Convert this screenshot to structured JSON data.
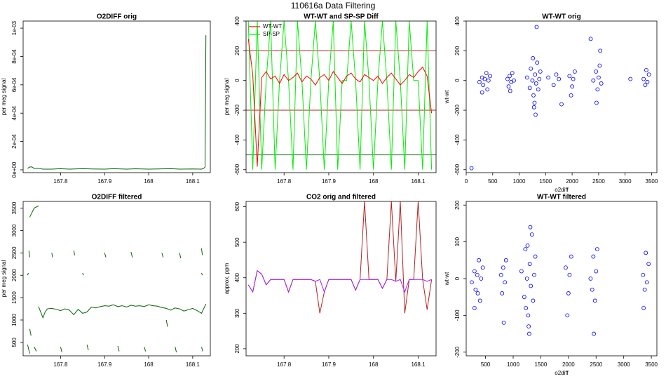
{
  "title": "110616a   Data Filtering",
  "chart_data": [
    {
      "type": "line",
      "title": "O2DIFF orig",
      "ylabel": "per meg signal",
      "xlim": [
        167.715,
        168.14
      ],
      "xticks": [
        167.8,
        167.9,
        168.0,
        168.1
      ],
      "ylim": [
        -2e-05,
        0.00105
      ],
      "yticks": [
        {
          "value": 0,
          "label": "0e+00"
        },
        {
          "value": 0.0002,
          "label": "2e-04"
        },
        {
          "value": 0.0004,
          "label": "4e-04"
        },
        {
          "value": 0.0006,
          "label": "6e-04"
        },
        {
          "value": 0.0008,
          "label": "8e-04"
        },
        {
          "value": 0.001,
          "label": "1e-03"
        }
      ],
      "x": [
        167.725,
        167.73,
        167.735,
        167.74,
        167.75,
        167.76,
        167.78,
        167.8,
        167.82,
        167.85,
        167.87,
        167.9,
        167.92,
        167.95,
        167.97,
        168.0,
        168.02,
        168.05,
        168.07,
        168.1,
        168.12,
        168.125,
        168.128,
        168.13
      ],
      "series": [
        {
          "color": "#006400",
          "values": [
            1e-05,
            2e-05,
            2e-05,
            1e-05,
            1e-05,
            5e-06,
            5e-06,
            8e-06,
            5e-06,
            8e-06,
            6e-06,
            5e-06,
            8e-06,
            5e-06,
            7e-06,
            5e-06,
            6e-06,
            8e-06,
            5e-06,
            6e-06,
            5e-06,
            1e-05,
            2e-05,
            0.00095
          ]
        }
      ]
    },
    {
      "type": "line",
      "title": "WT-WT and SP-SP Diff",
      "ylabel": "per meg signal",
      "xlim": [
        167.715,
        168.14
      ],
      "xticks": [
        167.8,
        167.9,
        168.0,
        168.1
      ],
      "ylim": [
        -620,
        400
      ],
      "yticks": [
        -600,
        -400,
        -200,
        0,
        200,
        400
      ],
      "legend": "top-left",
      "x": [
        167.72,
        167.73,
        167.74,
        167.75,
        167.76,
        167.77,
        167.78,
        167.79,
        167.8,
        167.81,
        167.82,
        167.83,
        167.84,
        167.85,
        167.86,
        167.87,
        167.88,
        167.89,
        167.9,
        167.91,
        167.92,
        167.93,
        167.94,
        167.95,
        167.96,
        167.97,
        167.98,
        167.99,
        168.0,
        168.01,
        168.02,
        168.03,
        168.04,
        168.05,
        168.06,
        168.07,
        168.08,
        168.09,
        168.1,
        168.11,
        168.12,
        168.13
      ],
      "series": [
        {
          "name": "WT-WT",
          "color": "#ff0000",
          "values": [
            280,
            40,
            -580,
            20,
            60,
            10,
            30,
            -20,
            40,
            0,
            20,
            50,
            -10,
            30,
            10,
            -30,
            20,
            40,
            0,
            60,
            20,
            -20,
            30,
            50,
            10,
            -10,
            40,
            20,
            0,
            30,
            -20,
            20,
            50,
            10,
            -30,
            0,
            40,
            20,
            60,
            90,
            30,
            -220
          ]
        },
        {
          "name": "SP-SP",
          "color": "#00ee00",
          "values": [
            400,
            -600,
            400,
            -600,
            0,
            400,
            -600,
            0,
            400,
            0,
            -600,
            400,
            0,
            -600,
            0,
            400,
            0,
            -600,
            0,
            400,
            -600,
            0,
            0,
            400,
            0,
            -600,
            400,
            0,
            -600,
            0,
            400,
            0,
            -600,
            400,
            0,
            -600,
            400,
            0,
            0,
            -600,
            400,
            -600
          ]
        }
      ],
      "hlines": [
        {
          "value": 200,
          "color": "#b22222"
        },
        {
          "value": -200,
          "color": "#b22222"
        },
        {
          "value": -500,
          "color": "#2e7d32"
        }
      ]
    },
    {
      "type": "scatter",
      "title": "WT-WT orig",
      "xlabel": "o2diff",
      "ylabel": "wt-wt",
      "color": "#0000ff",
      "xlim": [
        0,
        3600
      ],
      "xticks": [
        0,
        500,
        1000,
        1500,
        2000,
        2500,
        3000,
        3500
      ],
      "ylim": [
        -620,
        400
      ],
      "yticks": [
        -600,
        -400,
        -200,
        0,
        200,
        400
      ],
      "x": [
        250,
        300,
        320,
        350,
        380,
        400,
        420,
        450,
        300,
        780,
        800,
        820,
        850,
        870,
        900,
        830,
        1150,
        1200,
        1220,
        1250,
        1270,
        1300,
        1320,
        1340,
        1360,
        1380,
        1400,
        1290,
        1310,
        1260,
        1330,
        1280,
        1550,
        1650,
        1700,
        1800,
        1750,
        1950,
        2000,
        2020,
        2050,
        1980,
        2400,
        2450,
        2480,
        2500,
        2520,
        2550,
        2350,
        2530,
        2460,
        3350,
        3380,
        3400,
        3420,
        3450,
        3100,
        100
      ],
      "values": [
        -10,
        20,
        -30,
        10,
        50,
        -60,
        0,
        30,
        -80,
        10,
        -40,
        30,
        -10,
        50,
        0,
        -70,
        20,
        -50,
        80,
        0,
        -100,
        40,
        -20,
        120,
        -60,
        10,
        60,
        -150,
        -230,
        150,
        360,
        -180,
        20,
        -30,
        40,
        -160,
        10,
        30,
        -40,
        10,
        60,
        -100,
        0,
        60,
        -60,
        20,
        100,
        -20,
        280,
        200,
        -150,
        10,
        -30,
        70,
        -10,
        40,
        10,
        -590
      ]
    },
    {
      "type": "line",
      "title": "O2DIFF filtered",
      "ylabel": "per meg signal",
      "xlim": [
        167.715,
        168.14
      ],
      "xticks": [
        167.8,
        167.9,
        168.0,
        168.1
      ],
      "ylim": [
        200,
        3650
      ],
      "yticks": [
        500,
        1000,
        1500,
        2000,
        2500,
        3000,
        3500
      ],
      "series": [
        {
          "color": "#006400",
          "x": [
            167.75,
            167.76,
            167.765,
            167.77,
            167.78,
            167.79,
            167.8,
            167.81,
            167.82,
            167.83,
            167.84,
            167.85,
            167.86,
            167.87,
            167.88,
            167.89,
            167.9,
            167.91,
            167.92,
            167.93,
            167.94,
            167.95,
            167.96,
            167.97,
            167.98,
            167.99,
            168.0,
            168.01,
            168.02,
            168.03,
            168.04,
            168.05,
            168.06,
            168.07,
            168.08,
            168.09,
            168.1,
            168.11,
            168.12,
            168.13
          ],
          "values": [
            1300,
            1050,
            1180,
            1250,
            1260,
            1240,
            1210,
            1250,
            1220,
            1120,
            1240,
            1150,
            1180,
            1290,
            1270,
            1300,
            1320,
            1310,
            1340,
            1300,
            1320,
            1290,
            1330,
            1310,
            1320,
            1300,
            1340,
            1320,
            1310,
            1280,
            1260,
            1220,
            1270,
            1250,
            1200,
            1230,
            1260,
            1210,
            1150,
            1360
          ]
        },
        {
          "color": "#006400",
          "x": [
            167.73,
            167.74,
            167.75,
            167.75,
            167.728,
            167.73,
            167.73,
            167.78,
            167.782,
            167.782,
            167.83,
            167.832,
            167.832,
            167.9,
            167.903,
            167.903,
            167.96,
            167.963,
            167.963,
            168.03,
            168.033,
            168.033,
            168.07,
            168.073,
            168.073,
            168.12,
            168.122,
            168.122,
            167.725,
            167.727,
            167.727,
            167.85,
            167.852,
            167.852,
            168.12,
            168.122,
            168.122,
            167.73,
            167.733,
            167.733,
            167.725,
            167.73,
            167.73,
            167.74,
            167.745,
            167.745,
            167.8,
            167.803,
            167.803,
            167.86,
            167.863,
            167.863,
            167.93,
            167.933,
            167.933,
            167.99,
            167.993,
            167.993,
            168.04,
            168.043,
            168.043,
            168.06,
            168.063,
            168.063,
            168.12,
            168.123
          ],
          "values": [
            3300,
            3500,
            3550,
            null,
            2550,
            2400,
            null,
            2500,
            2400,
            null,
            2550,
            2450,
            null,
            2500,
            2400,
            null,
            2520,
            2400,
            null,
            2500,
            2400,
            null,
            2500,
            2380,
            null,
            2600,
            2450,
            null,
            2000,
            2050,
            null,
            2050,
            2000,
            null,
            2050,
            2000,
            null,
            800,
            650,
            null,
            450,
            250,
            null,
            400,
            300,
            null,
            400,
            280,
            null,
            450,
            330,
            null,
            420,
            300,
            null,
            400,
            300,
            null,
            1000,
            850,
            null,
            400,
            280,
            null,
            400,
            300
          ]
        }
      ]
    },
    {
      "type": "line",
      "title": "CO2 orig and filtered",
      "ylabel": "approx. ppm",
      "xlim": [
        167.715,
        168.14
      ],
      "xticks": [
        167.8,
        167.9,
        168.0,
        168.1
      ],
      "ylim": [
        180,
        615
      ],
      "yticks": [
        200,
        300,
        400,
        500,
        600
      ],
      "x": [
        167.72,
        167.73,
        167.74,
        167.75,
        167.76,
        167.77,
        167.78,
        167.79,
        167.8,
        167.81,
        167.82,
        167.83,
        167.84,
        167.85,
        167.86,
        167.87,
        167.88,
        167.89,
        167.9,
        167.91,
        167.92,
        167.93,
        167.94,
        167.95,
        167.96,
        167.97,
        167.98,
        167.99,
        168.0,
        168.01,
        168.02,
        168.03,
        168.04,
        168.05,
        168.06,
        168.07,
        168.08,
        168.09,
        168.1,
        168.11,
        168.12,
        168.13
      ],
      "series": [
        {
          "color": "#b22222",
          "values": [
            380,
            360,
            420,
            410,
            380,
            395,
            395,
            395,
            395,
            360,
            395,
            395,
            395,
            395,
            395,
            390,
            300,
            360,
            395,
            395,
            395,
            395,
            395,
            395,
            365,
            395,
            615,
            395,
            395,
            395,
            370,
            395,
            615,
            390,
            615,
            300,
            395,
            395,
            615,
            395,
            310,
            395
          ]
        },
        {
          "color": "#a020f0",
          "values": [
            380,
            360,
            420,
            410,
            380,
            395,
            395,
            395,
            395,
            360,
            395,
            395,
            395,
            395,
            395,
            390,
            395,
            360,
            395,
            395,
            395,
            395,
            395,
            395,
            365,
            395,
            395,
            395,
            395,
            395,
            370,
            395,
            395,
            390,
            395,
            360,
            395,
            395,
            395,
            395,
            390,
            395
          ]
        }
      ]
    },
    {
      "type": "scatter",
      "title": "WT-WT filtered",
      "xlabel": "o2diff",
      "ylabel": "wt-wt",
      "color": "#0000ff",
      "xlim": [
        150,
        3600
      ],
      "xticks": [
        500,
        1000,
        1500,
        2000,
        2500,
        3000,
        3500
      ],
      "ylim": [
        -210,
        210
      ],
      "yticks": [
        -200,
        -100,
        0,
        100,
        200
      ],
      "x": [
        250,
        300,
        320,
        350,
        380,
        400,
        420,
        450,
        300,
        360,
        780,
        800,
        820,
        850,
        870,
        830,
        1150,
        1200,
        1220,
        1250,
        1270,
        1300,
        1320,
        1340,
        1360,
        1380,
        1400,
        1290,
        1260,
        1280,
        1310,
        1230,
        1950,
        2000,
        2020,
        2050,
        1980,
        2400,
        2450,
        2480,
        2500,
        2520,
        2460,
        2430,
        3350,
        3380,
        3400,
        3420,
        3450,
        3360
      ],
      "values": [
        -10,
        20,
        -30,
        10,
        50,
        -60,
        0,
        30,
        -80,
        -40,
        10,
        -40,
        30,
        -10,
        50,
        -120,
        20,
        -50,
        80,
        0,
        -100,
        40,
        -20,
        120,
        -60,
        10,
        60,
        -150,
        90,
        -130,
        140,
        -80,
        30,
        -40,
        10,
        60,
        -100,
        0,
        60,
        -60,
        20,
        80,
        -150,
        -30,
        10,
        -30,
        70,
        -10,
        40,
        -80
      ]
    }
  ]
}
